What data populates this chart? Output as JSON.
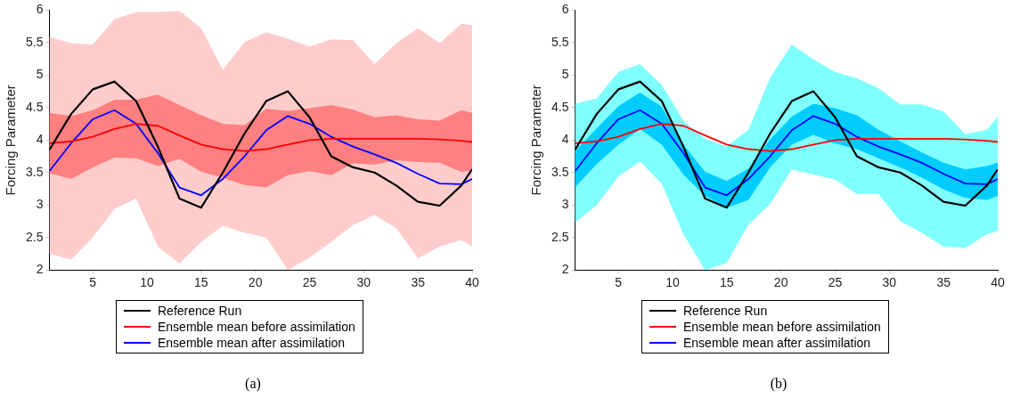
{
  "chart_data": [
    {
      "type": "line",
      "ylabel": "Forcing Parameter",
      "annotations": [
        "(a)"
      ],
      "legend": "bottom",
      "x": [
        1,
        3,
        5,
        7,
        9,
        11,
        13,
        15,
        17,
        19,
        21,
        23,
        25,
        27,
        29,
        31,
        33,
        35,
        37,
        39,
        40
      ],
      "xlim": [
        1,
        40
      ],
      "xticks": [
        5,
        10,
        15,
        20,
        25,
        30,
        35,
        40
      ],
      "ylim": [
        2,
        6
      ],
      "yticks": [
        2,
        2.5,
        3,
        3.5,
        4,
        4.5,
        5,
        5.5,
        6
      ],
      "series": [
        {
          "color": "#ffcccc",
          "values": [
            null,
            null,
            null,
            null,
            null,
            null,
            null,
            null,
            null,
            null,
            null,
            null,
            null,
            null,
            null,
            null,
            null,
            null,
            null,
            null,
            null
          ],
          "lower": [
            2.25,
            2.16,
            2.5,
            2.94,
            3.1,
            2.36,
            2.1,
            2.43,
            2.68,
            2.57,
            2.5,
            2.0,
            2.19,
            2.43,
            2.69,
            2.85,
            2.64,
            2.18,
            2.36,
            2.46,
            2.36
          ],
          "upper": [
            5.59,
            5.49,
            5.47,
            5.86,
            5.97,
            5.97,
            5.99,
            5.72,
            5.08,
            5.51,
            5.66,
            5.56,
            5.44,
            5.55,
            5.54,
            5.17,
            5.49,
            5.72,
            5.49,
            5.79,
            5.77
          ]
        },
        {
          "color": "#ff8080",
          "values": [
            null,
            null,
            null,
            null,
            null,
            null,
            null,
            null,
            null,
            null,
            null,
            null,
            null,
            null,
            null,
            null,
            null,
            null,
            null,
            null,
            null
          ],
          "lower": [
            3.49,
            3.4,
            3.58,
            3.73,
            3.72,
            3.6,
            3.71,
            3.51,
            3.42,
            3.31,
            3.27,
            3.46,
            3.52,
            3.46,
            3.64,
            3.62,
            3.69,
            3.66,
            3.65,
            3.51,
            3.53
          ],
          "upper": [
            4.42,
            4.37,
            4.46,
            4.62,
            4.62,
            4.7,
            4.54,
            4.38,
            4.25,
            4.23,
            4.48,
            4.45,
            4.49,
            4.54,
            4.47,
            4.35,
            4.38,
            4.32,
            4.3,
            4.46,
            4.42
          ]
        },
        {
          "name": "Reference Run",
          "color": "#000000",
          "values": [
            3.85,
            4.4,
            4.78,
            4.9,
            4.6,
            3.9,
            3.1,
            2.96,
            3.5,
            4.1,
            4.6,
            4.75,
            4.35,
            3.75,
            3.58,
            3.5,
            3.3,
            3.05,
            2.99,
            3.3,
            3.55
          ]
        },
        {
          "name": "Ensemble mean before assimilation",
          "color": "#ff0000",
          "values": [
            3.95,
            3.98,
            4.05,
            4.17,
            4.25,
            4.22,
            4.07,
            3.93,
            3.86,
            3.83,
            3.86,
            3.93,
            4.0,
            4.02,
            4.02,
            4.02,
            4.02,
            4.02,
            4.01,
            3.99,
            3.97
          ]
        },
        {
          "name": "Ensemble mean after assimilation",
          "color": "#0000ff",
          "values": [
            3.52,
            3.95,
            4.32,
            4.46,
            4.25,
            3.8,
            3.27,
            3.15,
            3.4,
            3.75,
            4.15,
            4.37,
            4.25,
            4.05,
            3.9,
            3.78,
            3.65,
            3.48,
            3.33,
            3.32,
            3.4
          ]
        }
      ]
    },
    {
      "type": "line",
      "ylabel": "Forcing Parameter",
      "annotations": [
        "(b)"
      ],
      "legend": "bottom",
      "x": [
        1,
        3,
        5,
        7,
        9,
        11,
        13,
        15,
        17,
        19,
        21,
        23,
        25,
        27,
        29,
        31,
        33,
        35,
        37,
        39,
        40
      ],
      "xlim": [
        1,
        40
      ],
      "xticks": [
        5,
        10,
        15,
        20,
        25,
        30,
        35,
        40
      ],
      "ylim": [
        2,
        6
      ],
      "yticks": [
        2,
        2.5,
        3,
        3.5,
        4,
        4.5,
        5,
        5.5,
        6
      ],
      "series": [
        {
          "color": "#80ffff",
          "values": [
            null,
            null,
            null,
            null,
            null,
            null,
            null,
            null,
            null,
            null,
            null,
            null,
            null,
            null,
            null,
            null,
            null,
            null,
            null,
            null,
            null
          ],
          "lower": [
            2.73,
            3.0,
            3.44,
            3.67,
            3.33,
            2.55,
            2.0,
            2.11,
            2.7,
            3.02,
            3.55,
            3.47,
            3.39,
            3.17,
            3.17,
            2.75,
            2.57,
            2.36,
            2.34,
            2.55,
            2.6
          ],
          "upper": [
            4.56,
            4.64,
            5.05,
            5.17,
            4.85,
            4.3,
            4.02,
            3.9,
            4.16,
            4.96,
            5.47,
            5.24,
            5.05,
            4.95,
            4.8,
            4.55,
            4.55,
            4.44,
            4.09,
            4.16,
            4.36
          ]
        },
        {
          "color": "#00ccff",
          "values": [
            null,
            null,
            null,
            null,
            null,
            null,
            null,
            null,
            null,
            null,
            null,
            null,
            null,
            null,
            null,
            null,
            null,
            null,
            null,
            null,
            null
          ],
          "lower": [
            3.27,
            3.63,
            3.93,
            4.17,
            3.93,
            3.47,
            3.14,
            2.96,
            3.08,
            3.58,
            3.93,
            4.08,
            3.95,
            3.86,
            3.72,
            3.58,
            3.42,
            3.24,
            3.11,
            3.08,
            3.14
          ],
          "upper": [
            3.83,
            4.18,
            4.52,
            4.73,
            4.51,
            3.93,
            3.51,
            3.37,
            3.56,
            4.01,
            4.36,
            4.56,
            4.49,
            4.38,
            4.16,
            3.98,
            3.81,
            3.65,
            3.55,
            3.6,
            3.65
          ]
        },
        {
          "name": "Reference Run",
          "color": "#000000",
          "values": [
            3.85,
            4.4,
            4.78,
            4.9,
            4.6,
            3.9,
            3.1,
            2.96,
            3.5,
            4.1,
            4.6,
            4.75,
            4.35,
            3.75,
            3.58,
            3.5,
            3.3,
            3.05,
            2.99,
            3.3,
            3.55
          ]
        },
        {
          "name": "Ensemble mean before assimilation",
          "color": "#ff0000",
          "values": [
            3.95,
            3.98,
            4.05,
            4.17,
            4.25,
            4.22,
            4.07,
            3.93,
            3.86,
            3.83,
            3.86,
            3.93,
            4.0,
            4.02,
            4.02,
            4.02,
            4.02,
            4.02,
            4.01,
            3.99,
            3.97
          ]
        },
        {
          "name": "Ensemble mean after assimilation",
          "color": "#0000ff",
          "values": [
            3.52,
            3.95,
            4.32,
            4.46,
            4.25,
            3.8,
            3.27,
            3.15,
            3.4,
            3.75,
            4.15,
            4.37,
            4.25,
            4.05,
            3.9,
            3.78,
            3.65,
            3.48,
            3.33,
            3.32,
            3.4
          ]
        }
      ]
    }
  ]
}
